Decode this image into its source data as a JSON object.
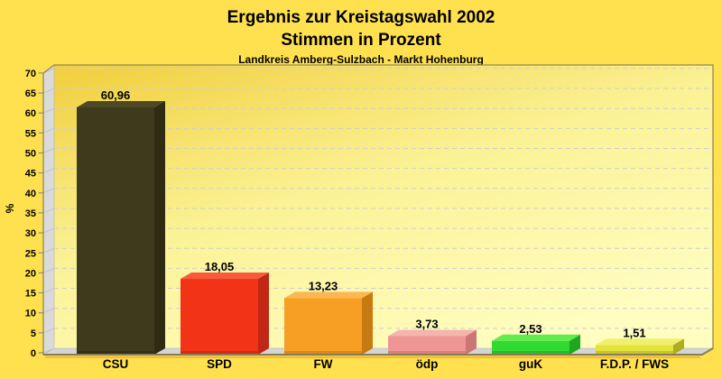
{
  "header": {
    "title_line1": "Ergebnis zur Kreistagswahl 2002",
    "title_line2": "Stimmen in Prozent",
    "subtitle": "Landkreis Amberg-Sulzbach - Markt Hohenburg"
  },
  "chart_data": {
    "type": "bar",
    "style": "3d-bars",
    "title": "Ergebnis zur Kreistagswahl 2002",
    "subtitle2": "Stimmen in Prozent",
    "subtitle": "Landkreis Amberg-Sulzbach - Markt Hohenburg",
    "ylabel": "%",
    "xlabel": "",
    "ylim": [
      0,
      70
    ],
    "ytick_step": 5,
    "ytick_labels": [
      "0",
      "5",
      "10",
      "15",
      "20",
      "25",
      "30",
      "35",
      "40",
      "45",
      "50",
      "55",
      "60",
      "65",
      "70"
    ],
    "grid": "horizontal-dashed",
    "legend": "none",
    "categories": [
      "CSU",
      "SPD",
      "FW",
      "ödp",
      "guK",
      "F.D.P. / FWS"
    ],
    "values": [
      60.96,
      18.05,
      13.23,
      3.73,
      2.53,
      1.51
    ],
    "value_labels": [
      "60,96",
      "18,05",
      "13,23",
      "3,73",
      "2,53",
      "1,51"
    ],
    "bar_colors": [
      {
        "front": "#3E3A1C",
        "top": "#4E4824",
        "side": "#2E2B12",
        "base": "#33301A"
      },
      {
        "front": "#F23318",
        "top": "#F85B3C",
        "side": "#C02714",
        "base": "#CE2D15"
      },
      {
        "front": "#F79F23",
        "top": "#FBB852",
        "side": "#C8790F",
        "base": "#D88A1A"
      },
      {
        "front": "#EF9694",
        "top": "#F5B5AE",
        "side": "#C97674",
        "base": "#D8807E"
      },
      {
        "front": "#33D933",
        "top": "#5FEC4C",
        "side": "#1FA81F",
        "base": "#28BC28"
      },
      {
        "front": "#E3E33C",
        "top": "#F0F06E",
        "side": "#ADAD20",
        "base": "#C6C62C"
      }
    ],
    "colors": {
      "page_background": "#FFE150",
      "plot_gradient": [
        "#F1CE3B",
        "#FBF295",
        "#FFFDC0"
      ],
      "wall": "#DADADA",
      "floor": "#D5D5D5",
      "frame": "#95894E",
      "grid": "#CFCFCF",
      "tick": "#8F8F8F",
      "floor_shadow": "#6A6A6A",
      "gold_shadow": "#EFAF35",
      "text": "#000000"
    }
  }
}
